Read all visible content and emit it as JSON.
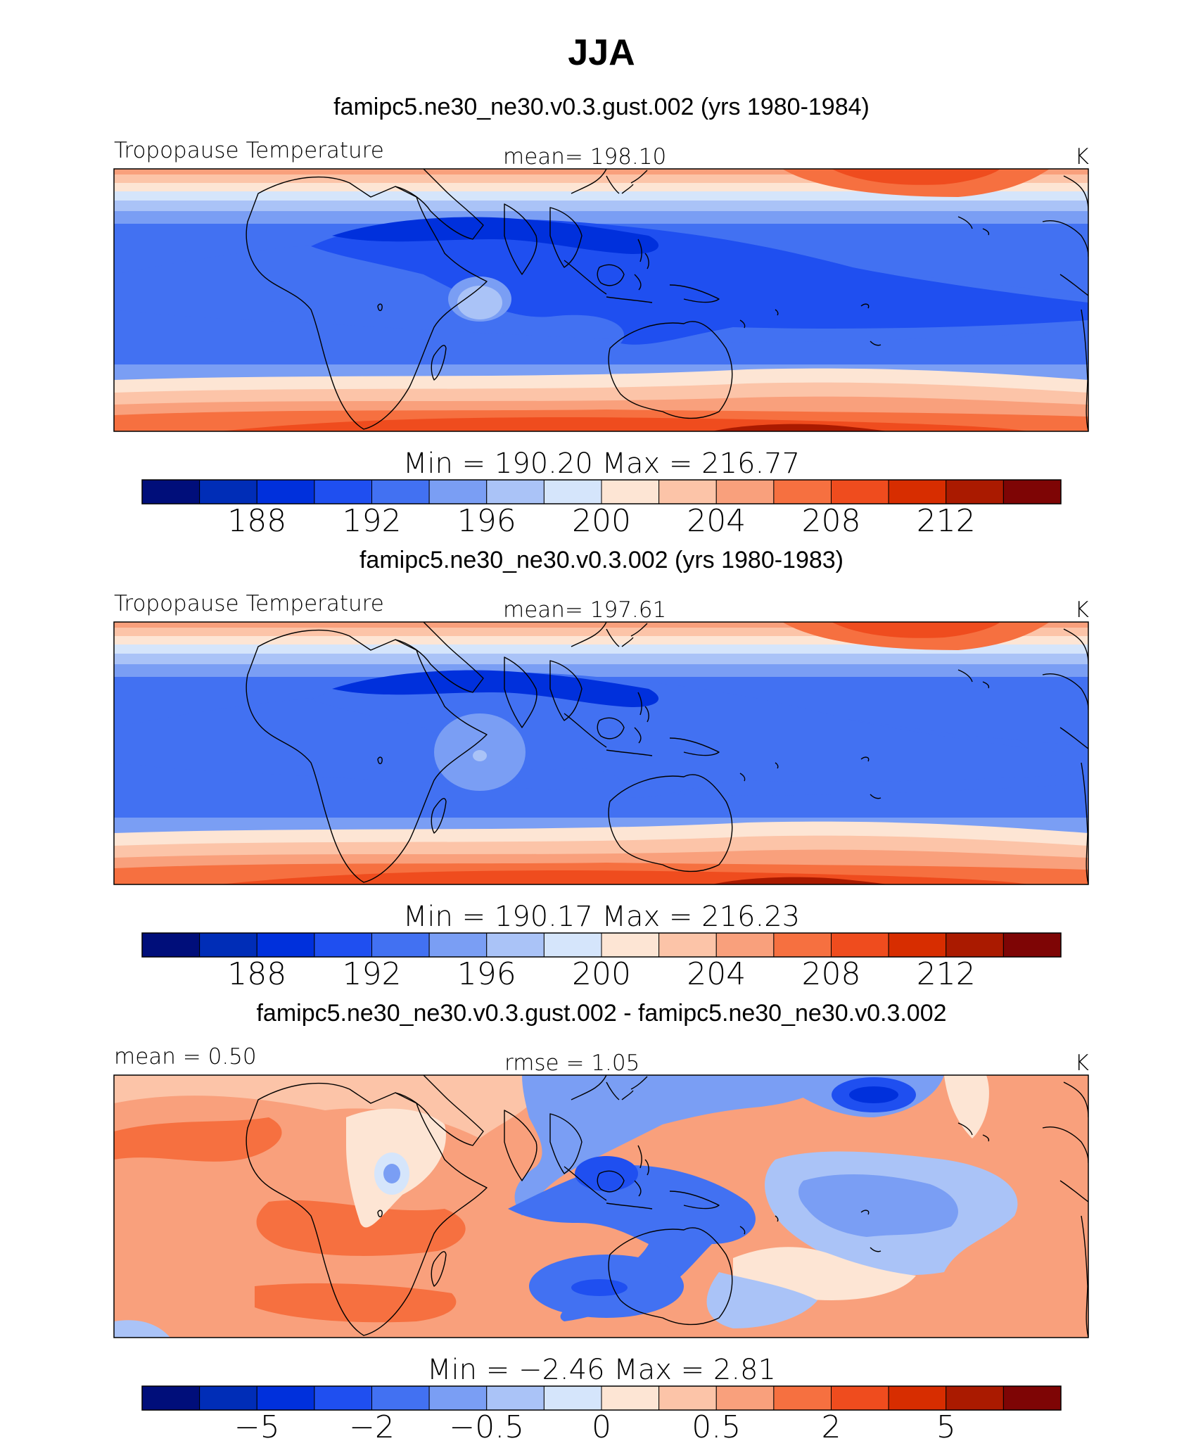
{
  "figure": {
    "title": "JJA"
  },
  "colors": {
    "scale": [
      "#000e7a",
      "#002db7",
      "#0030dc",
      "#1f4ff0",
      "#4271f2",
      "#7a9ef4",
      "#aac3f7",
      "#d5e5fb",
      "#fde5d4",
      "#fcc4a8",
      "#f9a07c",
      "#f67040",
      "#ef4c1e",
      "#d72d00",
      "#aa1a00",
      "#7e0505"
    ],
    "land_outline": "#000000"
  },
  "chart_data": [
    {
      "type": "heatmap",
      "title": "famipc5.ne30_ne30.v0.3.gust.002 (yrs 1980-1984)",
      "left_label": "Tropopause Temperature",
      "center_label": "mean=  198.10",
      "units": "K",
      "mean": 198.1,
      "min": 190.2,
      "max": 216.77,
      "minmax_text": "Min  =  190.20  Max  =  216.77",
      "colorbar_ticks": [
        "188",
        "192",
        "196",
        "200",
        "204",
        "208",
        "212"
      ],
      "colorbar_levels": [
        186,
        188,
        190,
        192,
        194,
        196,
        198,
        200,
        202,
        204,
        206,
        208,
        210,
        212,
        214
      ]
    },
    {
      "type": "heatmap",
      "title": "famipc5.ne30_ne30.v0.3.002 (yrs 1980-1983)",
      "left_label": "Tropopause Temperature",
      "center_label": "mean=  197.61",
      "units": "K",
      "mean": 197.61,
      "min": 190.17,
      "max": 216.23,
      "minmax_text": "Min  =  190.17  Max  =  216.23",
      "colorbar_ticks": [
        "188",
        "192",
        "196",
        "200",
        "204",
        "208",
        "212"
      ],
      "colorbar_levels": [
        186,
        188,
        190,
        192,
        194,
        196,
        198,
        200,
        202,
        204,
        206,
        208,
        210,
        212,
        214
      ]
    },
    {
      "type": "heatmap",
      "title": "famipc5.ne30_ne30.v0.3.gust.002 - famipc5.ne30_ne30.v0.3.002",
      "left_label": "mean =    0.50",
      "center_label": "rmse =    1.05",
      "units": "K",
      "mean": 0.5,
      "rmse": 1.05,
      "min": -2.46,
      "max": 2.81,
      "minmax_text": "Min  =   −2.46  Max  =     2.81",
      "colorbar_ticks": [
        "−5",
        "−2",
        "−0.5",
        "0",
        "0.5",
        "2",
        "5"
      ],
      "colorbar_levels": [
        -8,
        -5,
        -4,
        -2,
        -1,
        -0.5,
        -0.25,
        0,
        0.25,
        0.5,
        1,
        2,
        4,
        5,
        8
      ]
    }
  ]
}
